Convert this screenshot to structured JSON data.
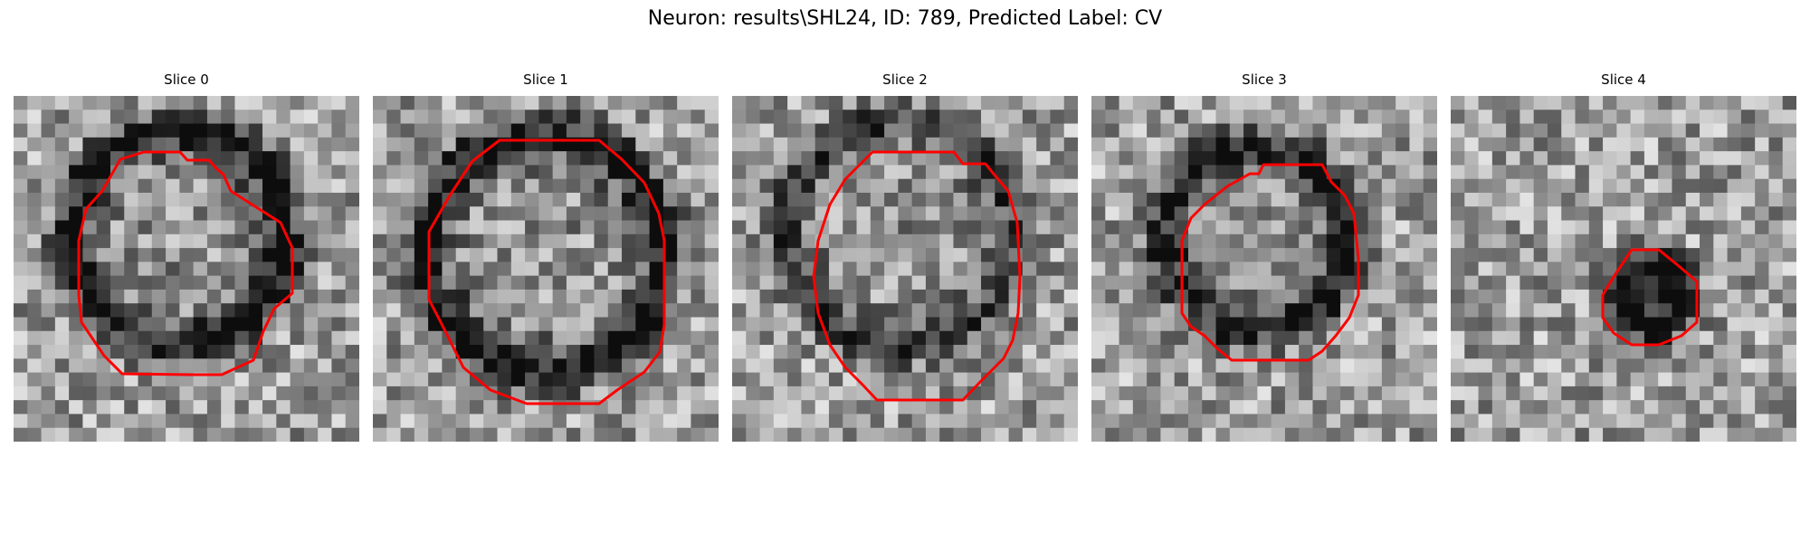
{
  "figure": {
    "title": "Neuron: results\\SHL24, ID: 789, Predicted Label: CV"
  },
  "slices": [
    {
      "title": "Slice 0"
    },
    {
      "title": "Slice 1"
    },
    {
      "title": "Slice 2"
    },
    {
      "title": "Slice 3"
    },
    {
      "title": "Slice 4"
    }
  ],
  "colors": {
    "contour": "#ff0000"
  }
}
